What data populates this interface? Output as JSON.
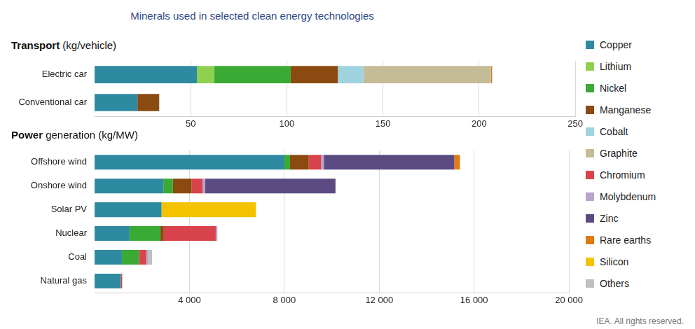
{
  "title": "Minerals used in selected clean energy technologies",
  "note": "IEA. All rights reserved.",
  "chart_data": [
    {
      "type": "bar",
      "title": "Transport (kg/vehicle)",
      "orientation": "horizontal",
      "stacked": true,
      "grid": true,
      "legend": "right",
      "categories": [
        "Electric car",
        "Conventional car"
      ],
      "xlim": [
        0,
        250
      ],
      "xticks": [
        50,
        100,
        150,
        200,
        250
      ],
      "series": [
        {
          "name": "Copper",
          "color": "#2e8aa0",
          "values": [
            53.2,
            22.3
          ]
        },
        {
          "name": "Lithium",
          "color": "#8fd14f",
          "values": [
            8.9,
            0
          ]
        },
        {
          "name": "Nickel",
          "color": "#3aaa35",
          "values": [
            39.9,
            0
          ]
        },
        {
          "name": "Manganese",
          "color": "#8b4a0f",
          "values": [
            24.5,
            11.2
          ]
        },
        {
          "name": "Cobalt",
          "color": "#9fd3e0",
          "values": [
            13.3,
            0
          ]
        },
        {
          "name": "Graphite",
          "color": "#c4bc96",
          "values": [
            66.3,
            0
          ]
        },
        {
          "name": "Chromium",
          "color": "#d9434b",
          "values": [
            0,
            0
          ]
        },
        {
          "name": "Molybdenum",
          "color": "#b9a3cf",
          "values": [
            0,
            0
          ]
        },
        {
          "name": "Zinc",
          "color": "#5c4a82",
          "values": [
            0,
            0
          ]
        },
        {
          "name": "Rare earths",
          "color": "#e07b12",
          "values": [
            0.5,
            0
          ]
        },
        {
          "name": "Silicon",
          "color": "#f5c200",
          "values": [
            0,
            0
          ]
        },
        {
          "name": "Others",
          "color": "#bfbfbf",
          "values": [
            0.3,
            0.3
          ]
        }
      ]
    },
    {
      "type": "bar",
      "title": "Power generation (kg/MW)",
      "orientation": "horizontal",
      "stacked": true,
      "grid": true,
      "legend": "right",
      "categories": [
        "Offshore wind",
        "Onshore wind",
        "Solar PV",
        "Nuclear",
        "Coal",
        "Natural gas"
      ],
      "xlim": [
        0,
        20000
      ],
      "xticks": [
        {
          "value": 4000,
          "label": "4 000"
        },
        {
          "value": 8000,
          "label": "8 000"
        },
        {
          "value": 12000,
          "label": "12 000"
        },
        {
          "value": 16000,
          "label": "16 000"
        },
        {
          "value": 20000,
          "label": "20 000"
        }
      ],
      "series": [
        {
          "name": "Copper",
          "color": "#2e8aa0",
          "values": [
            8000,
            2900,
            2822,
            1473,
            1150,
            1100
          ]
        },
        {
          "name": "Lithium",
          "color": "#8fd14f",
          "values": [
            0,
            0,
            0,
            0,
            0,
            0
          ]
        },
        {
          "name": "Nickel",
          "color": "#3aaa35",
          "values": [
            240,
            404,
            0,
            1297,
            721,
            16
          ]
        },
        {
          "name": "Manganese",
          "color": "#8b4a0f",
          "values": [
            790,
            780,
            0,
            148,
            0,
            0
          ]
        },
        {
          "name": "Cobalt",
          "color": "#9fd3e0",
          "values": [
            0,
            0,
            0,
            0,
            0,
            0
          ]
        },
        {
          "name": "Graphite",
          "color": "#c4bc96",
          "values": [
            0,
            0,
            0,
            0,
            0,
            0
          ]
        },
        {
          "name": "Chromium",
          "color": "#d9434b",
          "values": [
            525,
            470,
            0,
            2190,
            308,
            48
          ]
        },
        {
          "name": "Molybdenum",
          "color": "#b9a3cf",
          "values": [
            109,
            99,
            0,
            70,
            66,
            0
          ]
        },
        {
          "name": "Zinc",
          "color": "#5c4a82",
          "values": [
            5500,
            5500,
            0,
            0,
            0,
            0
          ]
        },
        {
          "name": "Rare earths",
          "color": "#e07b12",
          "values": [
            239,
            14,
            0,
            0,
            0,
            0
          ]
        },
        {
          "name": "Silicon",
          "color": "#f5c200",
          "values": [
            0,
            0,
            3980,
            0,
            0,
            0
          ]
        },
        {
          "name": "Others",
          "color": "#bfbfbf",
          "values": [
            0,
            0,
            0,
            0,
            180,
            0
          ]
        }
      ]
    }
  ]
}
